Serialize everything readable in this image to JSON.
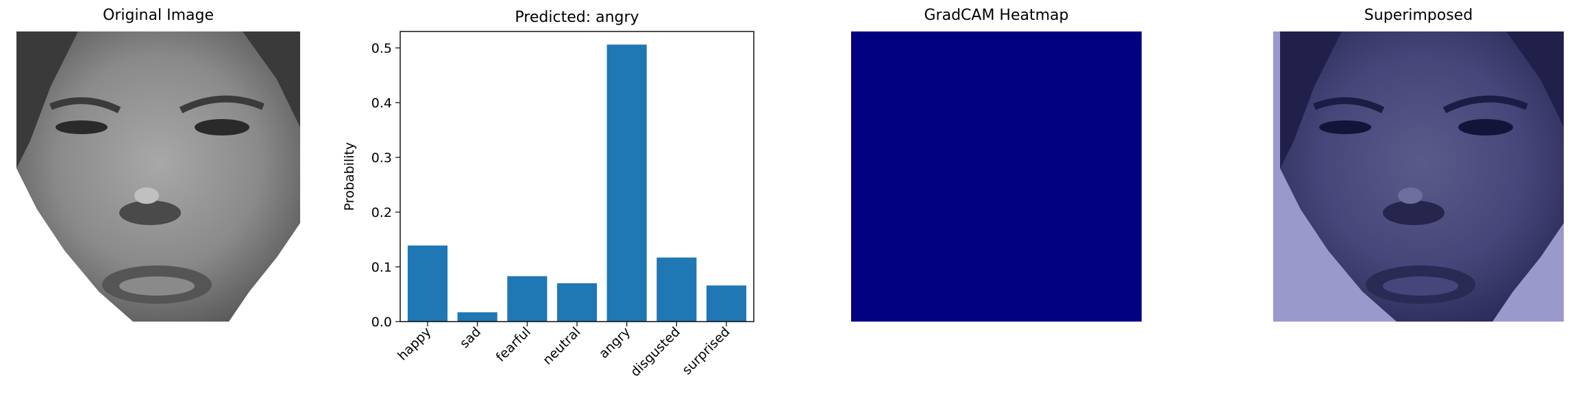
{
  "panels": {
    "original_title": "Original Image",
    "heatmap_title": "GradCAM Heatmap",
    "superimposed_title": "Superimposed"
  },
  "colors": {
    "bar": "#1f77b4",
    "heatmap": "#000080",
    "overlay": "#9999cc"
  },
  "chart_data": {
    "type": "bar",
    "title": "Predicted: angry",
    "xlabel": "",
    "ylabel": "Probability",
    "categories": [
      "happy",
      "sad",
      "fearful",
      "neutral",
      "angry",
      "disgusted",
      "surprised"
    ],
    "values": [
      0.139,
      0.017,
      0.083,
      0.07,
      0.506,
      0.117,
      0.066
    ],
    "ylim": [
      0,
      0.53
    ],
    "yticks": [
      0.0,
      0.1,
      0.2,
      0.3,
      0.4,
      0.5
    ],
    "ytick_labels": [
      "0.0",
      "0.1",
      "0.2",
      "0.3",
      "0.4",
      "0.5"
    ],
    "grid": false,
    "legend": "none"
  }
}
